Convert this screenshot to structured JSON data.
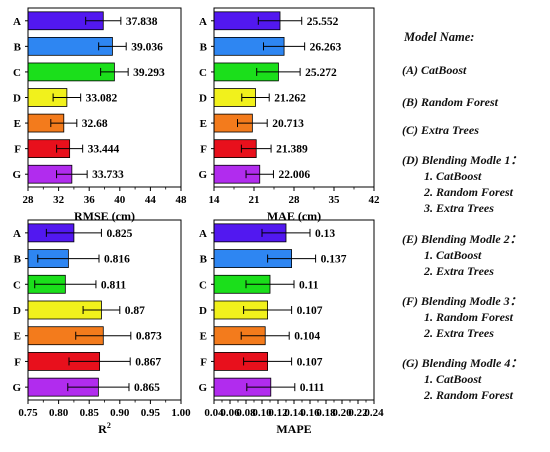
{
  "chart_data": [
    {
      "type": "bar",
      "orientation": "horizontal",
      "categories": [
        "A",
        "B",
        "C",
        "D",
        "E",
        "F",
        "G"
      ],
      "values": [
        37.838,
        39.036,
        39.293,
        33.082,
        32.68,
        33.444,
        33.733
      ],
      "value_labels": [
        "37.838",
        "39.036",
        "39.293",
        "33.082",
        "32.68",
        "33.444",
        "33.733"
      ],
      "errors": [
        2.3,
        1.8,
        1.8,
        1.8,
        1.7,
        1.7,
        2.0
      ],
      "xlabel": "RMSE (cm)",
      "xlim": [
        28,
        48
      ],
      "xticks": [
        "28",
        "32",
        "36",
        "40",
        "44",
        "48"
      ],
      "colors": [
        "#5218f0",
        "#2e86f2",
        "#1bdf1b",
        "#f1f11c",
        "#f37b1c",
        "#e8101c",
        "#b12cee"
      ]
    },
    {
      "type": "bar",
      "orientation": "horizontal",
      "categories": [
        "A",
        "B",
        "C",
        "D",
        "E",
        "F",
        "G"
      ],
      "values": [
        25.552,
        26.263,
        25.272,
        21.262,
        20.713,
        21.389,
        22.006
      ],
      "value_labels": [
        "25.552",
        "26.263",
        "25.272",
        "21.262",
        "20.713",
        "21.389",
        "22.006"
      ],
      "errors": [
        3.8,
        3.6,
        3.8,
        2.4,
        2.6,
        2.6,
        2.4
      ],
      "xlabel": "MAE (cm)",
      "xlim": [
        14,
        42
      ],
      "xticks": [
        "14",
        "21",
        "28",
        "35",
        "42"
      ],
      "colors": [
        "#5218f0",
        "#2e86f2",
        "#1bdf1b",
        "#f1f11c",
        "#f37b1c",
        "#e8101c",
        "#b12cee"
      ]
    },
    {
      "type": "bar",
      "orientation": "horizontal",
      "categories": [
        "A",
        "B",
        "C",
        "D",
        "E",
        "F",
        "G"
      ],
      "values": [
        0.825,
        0.816,
        0.811,
        0.87,
        0.873,
        0.867,
        0.865
      ],
      "value_labels": [
        "0.825",
        "0.816",
        "0.811",
        "0.87",
        "0.873",
        "0.867",
        "0.865"
      ],
      "errors": [
        0.045,
        0.05,
        0.05,
        0.03,
        0.045,
        0.05,
        0.05
      ],
      "xlabel": "R",
      "xlabel_sup": "2",
      "xlim": [
        0.75,
        1.0
      ],
      "xticks": [
        "0.75",
        "0.80",
        "0.85",
        "0.90",
        "0.95",
        "1.00"
      ],
      "colors": [
        "#5218f0",
        "#2e86f2",
        "#1bdf1b",
        "#f1f11c",
        "#f37b1c",
        "#e8101c",
        "#b12cee"
      ]
    },
    {
      "type": "bar",
      "orientation": "horizontal",
      "categories": [
        "A",
        "B",
        "C",
        "D",
        "E",
        "F",
        "G"
      ],
      "values": [
        0.13,
        0.137,
        0.11,
        0.107,
        0.104,
        0.107,
        0.111
      ],
      "value_labels": [
        "0.13",
        "0.137",
        "0.11",
        "0.107",
        "0.104",
        "0.107",
        "0.111"
      ],
      "errors": [
        0.03,
        0.03,
        0.03,
        0.03,
        0.03,
        0.03,
        0.03
      ],
      "xlabel": "MAPE",
      "xlim": [
        0.04,
        0.24
      ],
      "xticks": [
        "0.04",
        "0.06",
        "0.08",
        "0.10",
        "0.12",
        "0.14",
        "0.16",
        "0.18",
        "0.20",
        "0.22",
        "0.24"
      ],
      "colors": [
        "#5218f0",
        "#2e86f2",
        "#1bdf1b",
        "#f1f11c",
        "#f37b1c",
        "#e8101c",
        "#b12cee"
      ]
    }
  ],
  "legend": {
    "title": "Model Name:",
    "entries": [
      {
        "head": "(A)  CatBoost",
        "subs": []
      },
      {
        "head": "(B)  Random Forest",
        "subs": []
      },
      {
        "head": "(C)  Extra Trees",
        "subs": []
      },
      {
        "head": "(D)  Blending Modle 1：",
        "subs": [
          "1. CatBoost",
          "2. Random Forest",
          "3. Extra Trees"
        ]
      },
      {
        "head": "(E)  Blending Modle 2：",
        "subs": [
          "1. CatBoost",
          "2. Extra Trees"
        ]
      },
      {
        "head": "(F)  Blending Modle 3：",
        "subs": [
          "1. Random Forest",
          "2. Extra Trees"
        ]
      },
      {
        "head": "(G)  Blending Modle 4：",
        "subs": [
          "1. CatBoost",
          "2. Random Forest"
        ]
      }
    ]
  }
}
